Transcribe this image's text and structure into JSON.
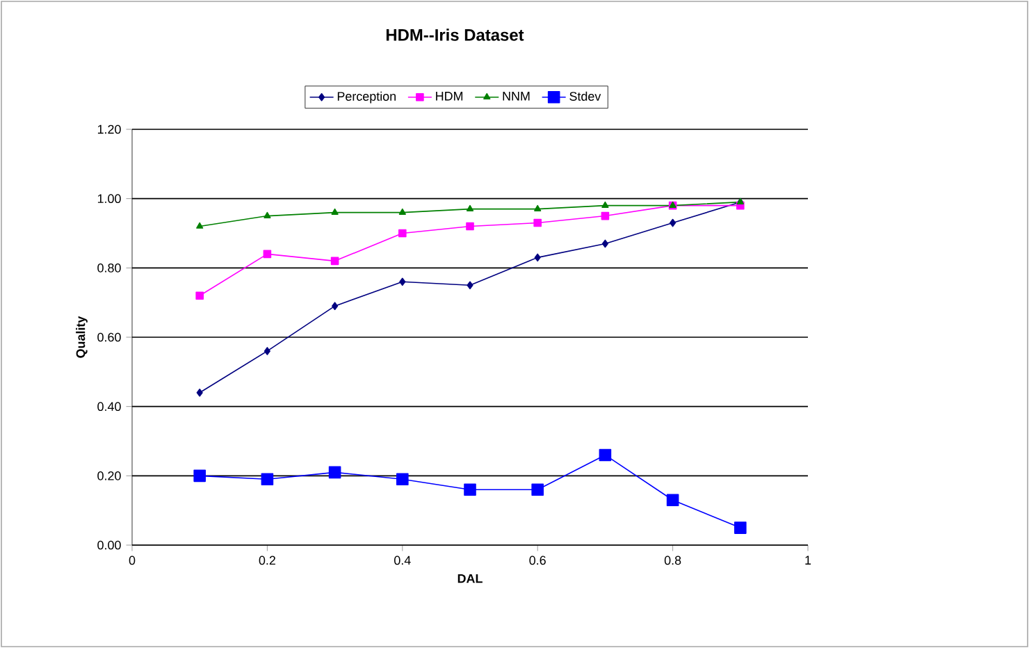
{
  "chart_data": {
    "type": "line",
    "title": "HDM--Iris Dataset",
    "xlabel": "DAL",
    "ylabel": "Quality",
    "x": [
      0.1,
      0.2,
      0.3,
      0.4,
      0.5,
      0.6,
      0.7,
      0.8,
      0.9
    ],
    "xlim": [
      0,
      1
    ],
    "xticks": [
      0,
      0.2,
      0.4,
      0.6,
      0.8,
      1
    ],
    "ylim": [
      0,
      1.2
    ],
    "yticks": [
      {
        "value": 0,
        "label": "0.00"
      },
      {
        "value": 0.2,
        "label": "0.20"
      },
      {
        "value": 0.4,
        "label": "0.40"
      },
      {
        "value": 0.6,
        "label": "0.60"
      },
      {
        "value": 0.8,
        "label": "0.80"
      },
      {
        "value": 1.0,
        "label": "1.00"
      },
      {
        "value": 1.2,
        "label": "1.20"
      }
    ],
    "grid": "y",
    "legend": "top",
    "line_style": "solid",
    "series": [
      {
        "name": "Perception",
        "color": "#000080",
        "marker": "diamond",
        "values": [
          0.44,
          0.56,
          0.69,
          0.76,
          0.75,
          0.83,
          0.87,
          0.93,
          0.99
        ]
      },
      {
        "name": "HDM",
        "color": "#ff00ff",
        "marker": "square",
        "values": [
          0.72,
          0.84,
          0.82,
          0.9,
          0.92,
          0.93,
          0.95,
          0.98,
          0.98
        ]
      },
      {
        "name": "NNM",
        "color": "#008000",
        "marker": "triangle",
        "values": [
          0.92,
          0.95,
          0.96,
          0.96,
          0.97,
          0.97,
          0.98,
          0.98,
          0.99
        ]
      },
      {
        "name": "Stdev",
        "color": "#0000ff",
        "marker": "square",
        "values": [
          0.2,
          0.19,
          0.21,
          0.19,
          0.16,
          0.16,
          0.26,
          0.13,
          0.05
        ]
      }
    ]
  }
}
